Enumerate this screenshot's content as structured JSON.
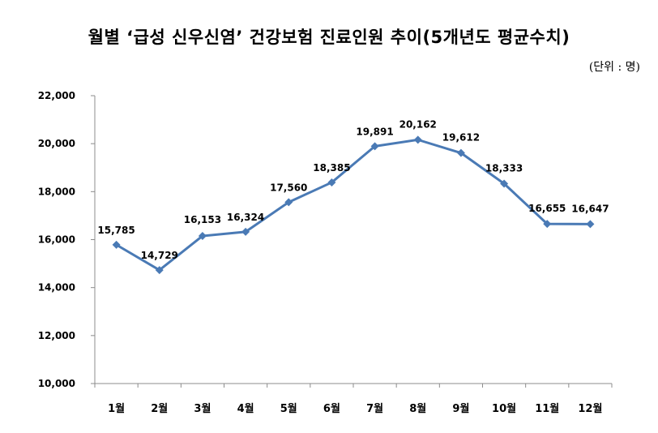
{
  "title": "월별 ‘급성 신우신염’ 건강보험 진료인원 추이(5개년도 평균수치)",
  "unit_label": "(단위 : 명)",
  "chart_data": {
    "type": "line",
    "title": "월별 ‘급성 신우신염’ 건강보험 진료인원 추이(5개년도 평균수치)",
    "categories": [
      "1월",
      "2월",
      "3월",
      "4월",
      "5월",
      "6월",
      "7월",
      "8월",
      "9월",
      "10월",
      "11월",
      "12월"
    ],
    "values": [
      15785,
      14729,
      16153,
      16324,
      17560,
      18385,
      19891,
      20162,
      19612,
      18333,
      16655,
      16647
    ],
    "value_labels": [
      "15,785",
      "14,729",
      "16,153",
      "16,324",
      "17,560",
      "18,385",
      "19,891",
      "20,162",
      "19,612",
      "18,333",
      "16,655",
      "16,647"
    ],
    "ylim": [
      10000,
      22000
    ],
    "y_ticks": [
      10000,
      12000,
      14000,
      16000,
      18000,
      20000,
      22000
    ],
    "y_tick_labels": [
      "10,000",
      "12,000",
      "14,000",
      "16,000",
      "18,000",
      "20,000",
      "22,000"
    ],
    "xlabel": "",
    "ylabel": "",
    "grid": false,
    "legend": "none",
    "line_color": "#4a7ab5",
    "marker": "diamond"
  }
}
